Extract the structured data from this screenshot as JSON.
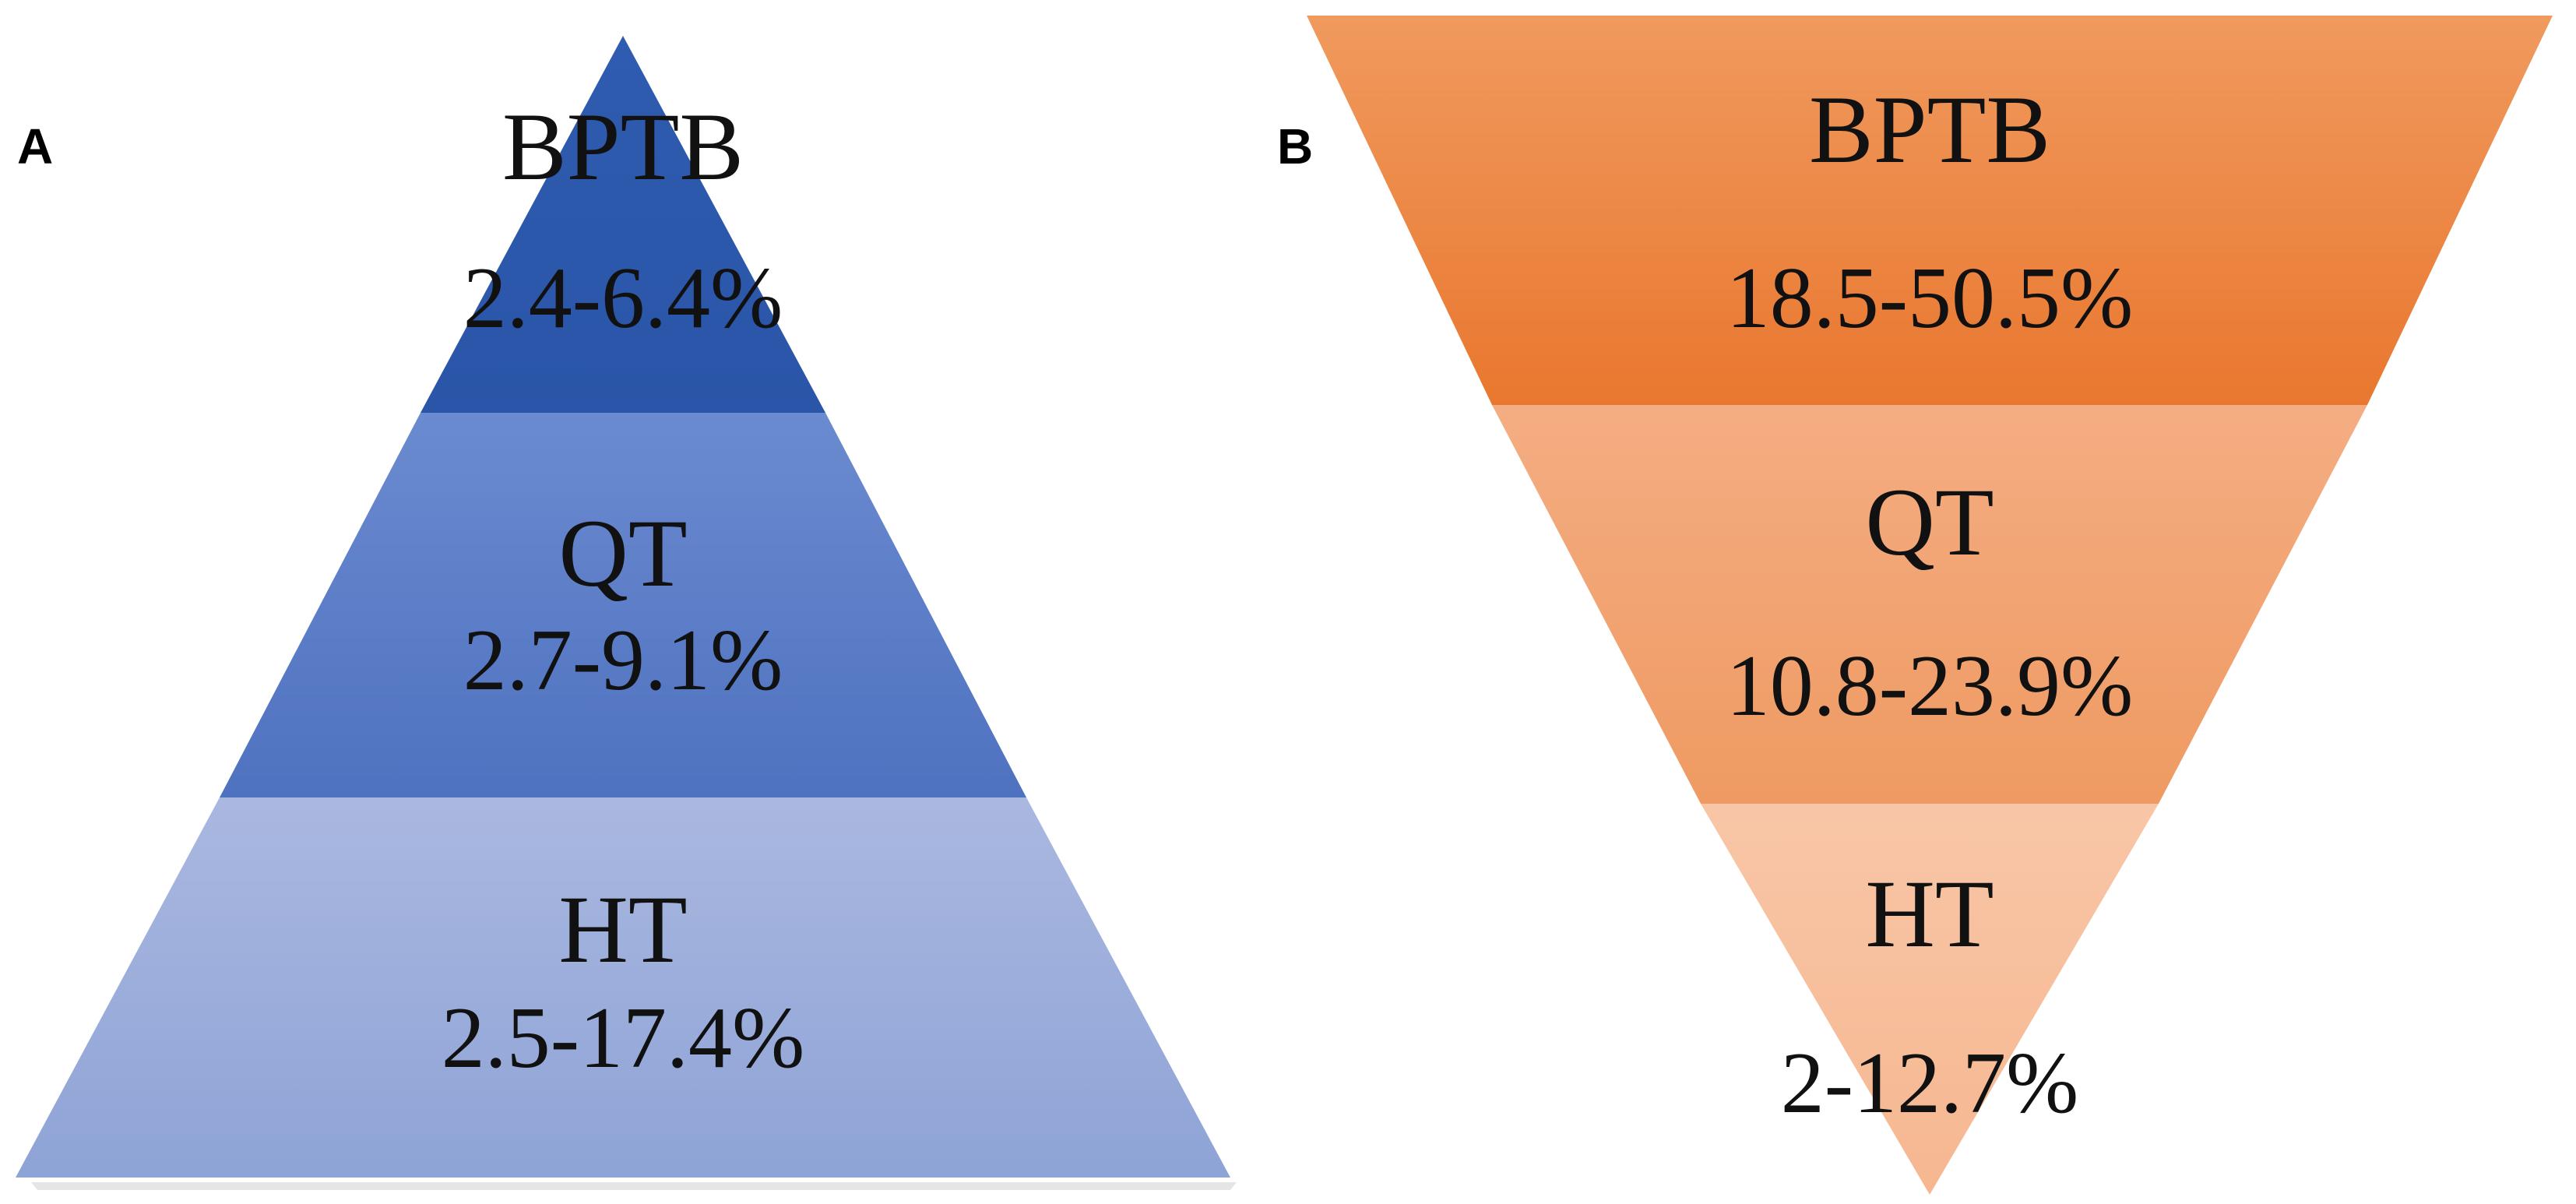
{
  "panels": [
    {
      "label": "A",
      "orientation": "pyramid",
      "segments": [
        {
          "name": "BPTB",
          "range": "2.4-6.4%",
          "color_top": "#2f5cb0",
          "color_bottom": "#2a55a8"
        },
        {
          "name": "QT",
          "range": "2.7-9.1%",
          "color_top": "#6b8bd0",
          "color_bottom": "#4f72c0"
        },
        {
          "name": "HT",
          "range": "2.5-17.4%",
          "color_top": "#aab8e0",
          "color_bottom": "#8ea3d6"
        }
      ]
    },
    {
      "label": "B",
      "orientation": "inverted",
      "segments": [
        {
          "name": "BPTB",
          "range": "18.5-50.5%",
          "color_top": "#f09a5e",
          "color_bottom": "#e9772f"
        },
        {
          "name": "QT",
          "range": "10.8-23.9%",
          "color_top": "#f4ad82",
          "color_bottom": "#ef9a62"
        },
        {
          "name": "HT",
          "range": "2-12.7%",
          "color_top": "#f8c6a7",
          "color_bottom": "#f6b790"
        }
      ]
    }
  ]
}
